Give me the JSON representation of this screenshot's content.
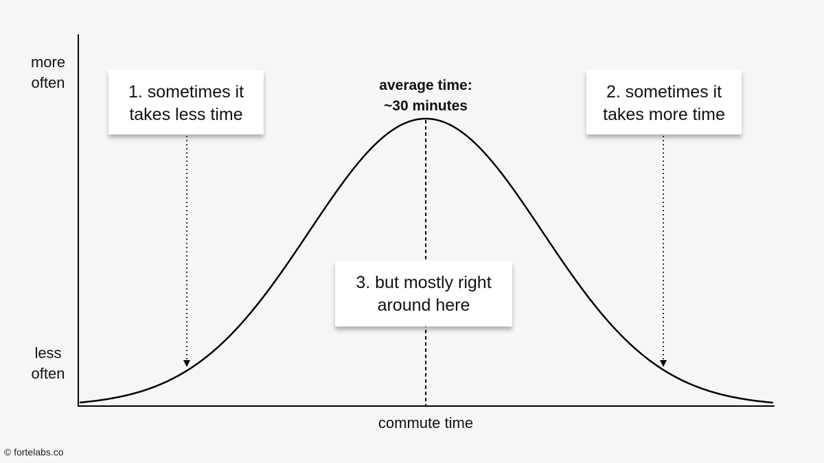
{
  "y_axis": {
    "top_label": [
      "more",
      "often"
    ],
    "bottom_label": [
      "less",
      "often"
    ]
  },
  "x_axis": {
    "label": "commute time"
  },
  "annotations": {
    "average": [
      "average time:",
      "~30 minutes"
    ],
    "callout_1": [
      "1. sometimes it",
      "takes less time"
    ],
    "callout_2": [
      "2. sometimes it",
      "takes more time"
    ],
    "callout_3": [
      "3. but mostly right",
      "around here"
    ]
  },
  "credit": "© fortelabs.co",
  "colors": {
    "background": "#f6f6f6",
    "line": "#000000",
    "callout_fill": "#ffffff"
  }
}
